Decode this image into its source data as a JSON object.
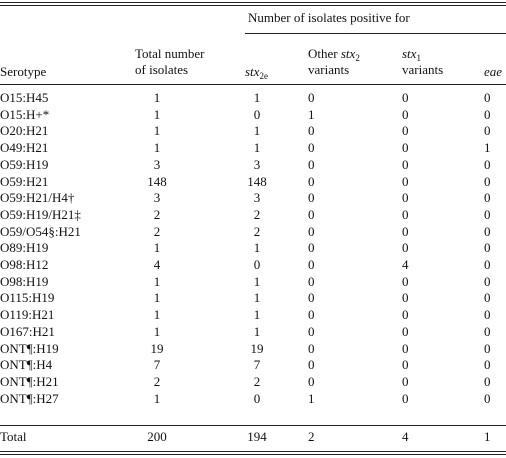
{
  "table": {
    "headers": {
      "group": "Number of isolates positive for",
      "serotype": "Serotype",
      "total": [
        "Total number",
        "of isolates"
      ],
      "stx2e": {
        "base": "stx",
        "sub": "2e"
      },
      "other": {
        "prefix": "Other",
        "base": "stx",
        "sub": "2",
        "line2": "variants"
      },
      "stx1": {
        "base": "stx",
        "sub": "1",
        "line2": "variants"
      },
      "eae": "eae"
    },
    "rows": [
      [
        "O15:H45",
        1,
        1,
        0,
        0,
        0
      ],
      [
        "O15:H+*",
        1,
        0,
        1,
        0,
        0
      ],
      [
        "O20:H21",
        1,
        1,
        0,
        0,
        0
      ],
      [
        "O49:H21",
        1,
        1,
        0,
        0,
        1
      ],
      [
        "O59:H19",
        3,
        3,
        0,
        0,
        0
      ],
      [
        "O59:H21",
        148,
        148,
        0,
        0,
        0
      ],
      [
        "O59:H21/H4†",
        3,
        3,
        0,
        0,
        0
      ],
      [
        "O59:H19/H21‡",
        2,
        2,
        0,
        0,
        0
      ],
      [
        "O59/O54§:H21",
        2,
        2,
        0,
        0,
        0
      ],
      [
        "O89:H19",
        1,
        1,
        0,
        0,
        0
      ],
      [
        "O98:H12",
        4,
        0,
        0,
        4,
        0
      ],
      [
        "O98:H19",
        1,
        1,
        0,
        0,
        0
      ],
      [
        "O115:H19",
        1,
        1,
        0,
        0,
        0
      ],
      [
        "O119:H21",
        1,
        1,
        0,
        0,
        0
      ],
      [
        "O167:H21",
        1,
        1,
        0,
        0,
        0
      ],
      [
        "ONT¶:H19",
        19,
        19,
        0,
        0,
        0
      ],
      [
        "ONT¶:H4",
        7,
        7,
        0,
        0,
        0
      ],
      [
        "ONT¶:H21",
        2,
        2,
        0,
        0,
        0
      ],
      [
        "ONT¶:H27",
        1,
        0,
        1,
        0,
        0
      ]
    ],
    "total": [
      "Total",
      200,
      194,
      2,
      4,
      1
    ]
  }
}
